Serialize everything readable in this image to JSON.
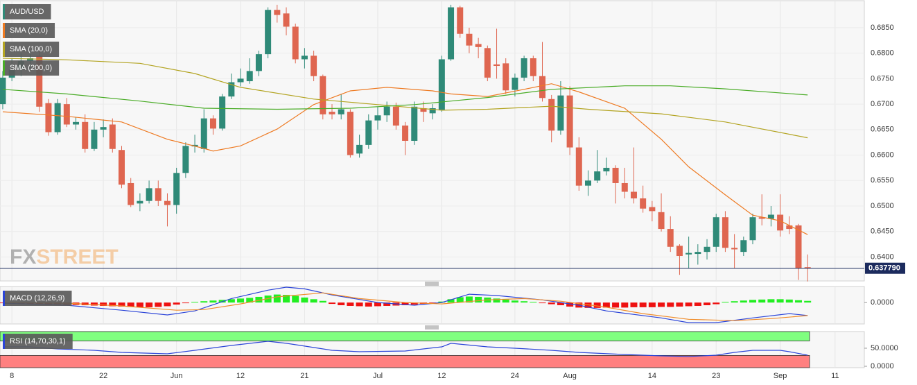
{
  "chart_data": [
    {
      "type": "candlestick",
      "xlim": [
        -0.3,
        94.2
      ],
      "ylim": [
        0.6353,
        0.6903
      ],
      "grid": true,
      "xticks": [
        {
          "value": 1,
          "label": "8"
        },
        {
          "value": 11,
          "label": "22"
        },
        {
          "value": 19,
          "label": "Jun"
        },
        {
          "value": 26,
          "label": "12"
        },
        {
          "value": 33,
          "label": "21"
        },
        {
          "value": 41,
          "label": "Jul"
        },
        {
          "value": 48,
          "label": "12"
        },
        {
          "value": 56,
          "label": "24"
        },
        {
          "value": 62,
          "label": "Aug"
        },
        {
          "value": 71,
          "label": "14"
        },
        {
          "value": 78,
          "label": "23"
        },
        {
          "value": 85,
          "label": "Sep"
        },
        {
          "value": 91,
          "label": "11"
        }
      ],
      "yticks": [
        {
          "value": 0.64,
          "label": "0.6400"
        },
        {
          "value": 0.645,
          "label": "0.6450"
        },
        {
          "value": 0.65,
          "label": "0.6500"
        },
        {
          "value": 0.655,
          "label": "0.6550"
        },
        {
          "value": 0.66,
          "label": "0.6600"
        },
        {
          "value": 0.665,
          "label": "0.6650"
        },
        {
          "value": 0.67,
          "label": "0.6700"
        },
        {
          "value": 0.675,
          "label": "0.6750"
        },
        {
          "value": 0.68,
          "label": "0.6800"
        },
        {
          "value": 0.685,
          "label": "0.6850"
        }
      ],
      "last_price": {
        "value": 0.63779,
        "label": "0.637790"
      },
      "watermark": {
        "left": "FX",
        "right": "STREET"
      },
      "series": [
        {
          "name": "AUD/USD",
          "type": "ohlc",
          "up_color": "#2f8a78",
          "down_color": "#df6650",
          "open": [
            0.67,
            0.6752,
            0.6768,
            0.6785,
            0.6795,
            0.6702,
            0.6645,
            0.67,
            0.666,
            0.6665,
            0.6612,
            0.665,
            0.666,
            0.661,
            0.6545,
            0.6505,
            0.651,
            0.6535,
            0.651,
            0.6502,
            0.6565,
            0.6617,
            0.6612,
            0.6672,
            0.6652,
            0.6715,
            0.6743,
            0.6745,
            0.6765,
            0.6798,
            0.6885,
            0.6878,
            0.6852,
            0.6788,
            0.6795,
            0.6755,
            0.6685,
            0.668,
            0.6685,
            0.6603,
            0.662,
            0.6668,
            0.6678,
            0.6695,
            0.6658,
            0.6628,
            0.6692,
            0.6682,
            0.6688,
            0.6788,
            0.689,
            0.6838,
            0.6818,
            0.681,
            0.6778,
            0.678,
            0.6728,
            0.6752,
            0.679,
            0.6755,
            0.671,
            0.6648,
            0.6717,
            0.6615,
            0.654,
            0.655,
            0.6568,
            0.6575,
            0.6545,
            0.6528,
            0.6515,
            0.6498,
            0.6488,
            0.6455,
            0.6422,
            0.6405,
            0.6406,
            0.641,
            0.642,
            0.6478,
            0.6418,
            0.641,
            0.6433,
            0.6478,
            0.6475,
            0.6483,
            0.6462,
            0.6462,
            0.638
          ],
          "high": [
            0.6765,
            0.679,
            0.68,
            0.6805,
            0.6805,
            0.671,
            0.671,
            0.6712,
            0.6675,
            0.668,
            0.6665,
            0.667,
            0.6672,
            0.6618,
            0.6555,
            0.6525,
            0.655,
            0.655,
            0.6525,
            0.6575,
            0.6625,
            0.664,
            0.669,
            0.6678,
            0.672,
            0.676,
            0.677,
            0.679,
            0.6805,
            0.689,
            0.6895,
            0.689,
            0.6858,
            0.681,
            0.6805,
            0.6758,
            0.67,
            0.672,
            0.669,
            0.664,
            0.668,
            0.6695,
            0.6705,
            0.6703,
            0.6665,
            0.6705,
            0.6705,
            0.67,
            0.6795,
            0.6895,
            0.6893,
            0.685,
            0.683,
            0.6815,
            0.6848,
            0.679,
            0.676,
            0.6795,
            0.6795,
            0.6822,
            0.6718,
            0.6745,
            0.6735,
            0.6635,
            0.657,
            0.661,
            0.6595,
            0.658,
            0.6575,
            0.6615,
            0.654,
            0.651,
            0.6525,
            0.648,
            0.6425,
            0.644,
            0.6425,
            0.6435,
            0.6485,
            0.649,
            0.6445,
            0.644,
            0.6485,
            0.6523,
            0.65,
            0.6523,
            0.648,
            0.6465,
            0.6405
          ],
          "low": [
            0.669,
            0.6745,
            0.6755,
            0.677,
            0.6685,
            0.6638,
            0.664,
            0.6655,
            0.665,
            0.6605,
            0.6608,
            0.6635,
            0.6605,
            0.6535,
            0.6498,
            0.649,
            0.6505,
            0.65,
            0.646,
            0.6485,
            0.6555,
            0.6605,
            0.6605,
            0.664,
            0.6648,
            0.671,
            0.6735,
            0.674,
            0.6755,
            0.679,
            0.686,
            0.6835,
            0.678,
            0.677,
            0.6745,
            0.667,
            0.667,
            0.667,
            0.6595,
            0.6595,
            0.6612,
            0.665,
            0.6665,
            0.665,
            0.66,
            0.662,
            0.6665,
            0.667,
            0.6685,
            0.6785,
            0.683,
            0.68,
            0.679,
            0.6745,
            0.675,
            0.672,
            0.6715,
            0.6745,
            0.6745,
            0.6705,
            0.6625,
            0.664,
            0.66,
            0.653,
            0.652,
            0.6545,
            0.656,
            0.6505,
            0.6515,
            0.6505,
            0.6487,
            0.647,
            0.645,
            0.641,
            0.6365,
            0.6378,
            0.6385,
            0.6395,
            0.641,
            0.641,
            0.6378,
            0.6402,
            0.6425,
            0.6462,
            0.646,
            0.644,
            0.6445,
            0.6355,
            0.6352
          ],
          "close": [
            0.6752,
            0.6768,
            0.6785,
            0.679,
            0.6695,
            0.6645,
            0.6702,
            0.666,
            0.6665,
            0.6612,
            0.665,
            0.6655,
            0.6612,
            0.6542,
            0.6502,
            0.651,
            0.6535,
            0.651,
            0.6502,
            0.6565,
            0.6618,
            0.662,
            0.6672,
            0.6652,
            0.6715,
            0.6743,
            0.675,
            0.6765,
            0.6798,
            0.6885,
            0.6875,
            0.6852,
            0.6788,
            0.6795,
            0.6755,
            0.668,
            0.668,
            0.669,
            0.66,
            0.662,
            0.6668,
            0.6678,
            0.6695,
            0.6658,
            0.6628,
            0.6695,
            0.6685,
            0.6692,
            0.6788,
            0.689,
            0.6838,
            0.6815,
            0.6812,
            0.6752,
            0.6775,
            0.6727,
            0.6752,
            0.679,
            0.6755,
            0.6712,
            0.6648,
            0.6717,
            0.6615,
            0.654,
            0.655,
            0.6568,
            0.6575,
            0.6545,
            0.6528,
            0.6515,
            0.6495,
            0.649,
            0.6455,
            0.642,
            0.6402,
            0.6408,
            0.641,
            0.642,
            0.6478,
            0.6418,
            0.6415,
            0.6433,
            0.6478,
            0.6475,
            0.6483,
            0.6452,
            0.6455,
            0.6378,
            0.6378
          ]
        },
        {
          "name": "SMA (20,0)",
          "type": "line",
          "color": "#ee7a22",
          "x": [
            0,
            7,
            13,
            18,
            22,
            23,
            26,
            30,
            34,
            38,
            42,
            47,
            49,
            53,
            57,
            60,
            63,
            68,
            72,
            75,
            79,
            82,
            85,
            88
          ],
          "values": [
            0.6685,
            0.6676,
            0.6665,
            0.6631,
            0.6613,
            0.6608,
            0.6618,
            0.6651,
            0.6699,
            0.6726,
            0.6733,
            0.6726,
            0.672,
            0.6715,
            0.6729,
            0.674,
            0.6724,
            0.6692,
            0.6631,
            0.6577,
            0.6522,
            0.6482,
            0.6471,
            0.6444
          ]
        },
        {
          "name": "SMA (100,0)",
          "type": "line",
          "color": "#b3a422",
          "x": [
            0,
            7,
            15,
            21,
            26,
            34,
            41,
            48,
            53,
            60,
            64,
            72,
            79,
            88
          ],
          "values": [
            0.679,
            0.6787,
            0.678,
            0.676,
            0.6733,
            0.671,
            0.6699,
            0.6688,
            0.669,
            0.6696,
            0.669,
            0.6681,
            0.6665,
            0.6634
          ]
        },
        {
          "name": "SMA (200,0)",
          "type": "line",
          "color": "#4aac27",
          "x": [
            0,
            7,
            15,
            22,
            30,
            38,
            45,
            53,
            60,
            68,
            73,
            79,
            88
          ],
          "values": [
            0.6729,
            0.672,
            0.6706,
            0.6692,
            0.669,
            0.6692,
            0.6699,
            0.6713,
            0.6729,
            0.6736,
            0.6736,
            0.673,
            0.6718
          ]
        }
      ]
    },
    {
      "type": "macd",
      "name": "MACD (12,26,9)",
      "ylim": [
        -0.0064,
        0.0048
      ],
      "yticks": [
        {
          "value": 0,
          "label": "0.0000"
        }
      ],
      "series": [
        {
          "type": "histogram",
          "up_color": "#22ee22",
          "down_color": "#ee1111",
          "values": [
            -0.0002,
            -0.0003,
            -0.0003,
            -0.0004,
            -0.0004,
            -0.0005,
            -0.0005,
            -0.0006,
            -0.0007,
            -0.0008,
            -0.0009,
            -0.001,
            -0.0011,
            -0.0012,
            -0.0013,
            -0.0014,
            -0.0014,
            -0.0013,
            -0.0011,
            -0.0006,
            -0.0002,
            0.0002,
            0.0004,
            0.0006,
            0.0008,
            0.001,
            0.0012,
            0.0014,
            0.0017,
            0.0021,
            0.0024,
            0.0023,
            0.002,
            0.0015,
            0.001,
            0.0005,
            -0.0004,
            -0.0008,
            -0.001,
            -0.0011,
            -0.0012,
            -0.0011,
            -0.001,
            -0.0009,
            -0.0008,
            -0.0006,
            -0.0004,
            -0.0002,
            0.0003,
            0.001,
            0.0016,
            0.0018,
            0.0017,
            0.0015,
            0.0012,
            0.0009,
            0.0006,
            0.0004,
            0.0002,
            -0.0002,
            -0.0005,
            -0.0008,
            -0.0012,
            -0.0015,
            -0.0016,
            -0.0016,
            -0.0015,
            -0.0015,
            -0.0015,
            -0.0014,
            -0.0014,
            -0.0014,
            -0.0013,
            -0.0013,
            -0.0012,
            -0.0011,
            -0.001,
            -0.0008,
            -0.0005,
            0.0002,
            0.0004,
            0.0006,
            0.0008,
            0.0009,
            0.001,
            0.001,
            0.0009,
            0.0007,
            0.0005
          ]
        },
        {
          "type": "line",
          "color": "#2c45d8",
          "x": [
            0,
            7,
            13,
            18,
            21,
            25,
            29,
            31,
            33,
            36,
            41,
            45,
            48,
            51,
            54,
            59,
            63,
            66,
            72,
            75,
            78,
            82,
            86,
            88
          ],
          "values": [
            -0.0002,
            -0.0008,
            -0.0023,
            -0.0037,
            -0.0025,
            0.0012,
            0.0037,
            0.0046,
            0.0041,
            0.0023,
            0,
            -0.0008,
            0,
            0.0025,
            0.0021,
            0.0008,
            -0.0008,
            -0.0025,
            -0.0046,
            -0.006,
            -0.006,
            -0.0046,
            -0.0033,
            -0.0039
          ]
        },
        {
          "type": "line",
          "color": "#f08c2a",
          "x": [
            0,
            7,
            13,
            19,
            22,
            26,
            30,
            35,
            39,
            44,
            48,
            53,
            57,
            61,
            66,
            70,
            75,
            80,
            84,
            88
          ],
          "values": [
            0,
            -0.0002,
            -0.001,
            -0.0023,
            -0.0021,
            -0.0004,
            0.0017,
            0.0029,
            0.0012,
            0,
            -0.0004,
            0.0008,
            0.0012,
            0.0004,
            -0.0014,
            -0.0033,
            -0.005,
            -0.0054,
            -0.0048,
            -0.0039
          ]
        }
      ]
    },
    {
      "type": "rsi",
      "name": "RSI (14,70,30,1)",
      "ylim": [
        -3.8,
        96
      ],
      "yticks": [
        {
          "value": 0,
          "label": "0.0000"
        },
        {
          "value": 50,
          "label": "50.0000"
        }
      ],
      "overbought": 70,
      "oversold": 30,
      "band_colors": [
        "#80ff80",
        "#ff8080"
      ],
      "series": [
        {
          "type": "line",
          "color": "#2c45d8",
          "x": [
            0,
            3,
            6,
            10,
            13,
            18,
            21,
            25,
            29,
            31,
            33,
            36,
            39,
            44,
            48,
            49,
            53,
            56,
            60,
            63,
            68,
            72,
            75,
            78,
            80,
            82,
            85,
            86,
            88
          ],
          "values": [
            53.8,
            53.8,
            48.1,
            44.2,
            38.5,
            34.6,
            44.2,
            57.7,
            69.2,
            63.5,
            55.8,
            44.2,
            40.4,
            42.3,
            53.8,
            63.5,
            53.8,
            50,
            44.2,
            38.5,
            32.7,
            28.8,
            26.9,
            30.8,
            38.5,
            44.2,
            44.2,
            40.4,
            30.8
          ]
        }
      ]
    }
  ]
}
